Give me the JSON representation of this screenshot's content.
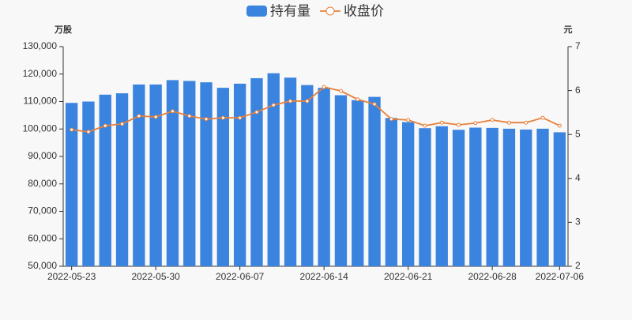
{
  "chart_data": {
    "type": "bar-line",
    "categories": [
      "2022-05-23",
      null,
      null,
      null,
      null,
      "2022-05-30",
      null,
      null,
      null,
      null,
      "2022-06-07",
      null,
      null,
      null,
      null,
      "2022-06-14",
      null,
      null,
      null,
      null,
      "2022-06-21",
      null,
      null,
      null,
      null,
      "2022-06-28",
      null,
      null,
      null,
      "2022-07-06"
    ],
    "y_label": "万股",
    "y2_label": "元",
    "series": [
      {
        "name": "持有量",
        "color": "#3a84e0",
        "kind": "bar",
        "values": [
          109500,
          110000,
          112500,
          113000,
          116200,
          116200,
          117800,
          117500,
          117000,
          115000,
          116500,
          118500,
          120300,
          118700,
          116000,
          115000,
          112300,
          110500,
          111700,
          104000,
          102500,
          100300,
          101000,
          99700,
          100500,
          100400,
          100100,
          99800,
          100100,
          98800
        ]
      },
      {
        "name": "收盘价",
        "color": "#e8803a",
        "kind": "line",
        "axis": "y2",
        "values": [
          5.11,
          5.06,
          5.2,
          5.24,
          5.42,
          5.4,
          5.53,
          5.42,
          5.35,
          5.38,
          5.38,
          5.51,
          5.67,
          5.76,
          5.76,
          6.08,
          5.99,
          5.8,
          5.69,
          5.35,
          5.33,
          5.2,
          5.27,
          5.22,
          5.26,
          5.33,
          5.27,
          5.27,
          5.38,
          5.2
        ]
      }
    ],
    "ylim": [
      50000,
      130000
    ],
    "yticks": [
      {
        "value": 50000,
        "label": "50,000"
      },
      {
        "value": 60000,
        "label": "60,000"
      },
      {
        "value": 70000,
        "label": "70,000"
      },
      {
        "value": 80000,
        "label": "80,000"
      },
      {
        "value": 90000,
        "label": "90,000"
      },
      {
        "value": 100000,
        "label": "100,000"
      },
      {
        "value": 110000,
        "label": "110,000"
      },
      {
        "value": 120000,
        "label": "120,000"
      },
      {
        "value": 130000,
        "label": "130,000"
      }
    ],
    "y2lim": [
      2,
      7
    ],
    "y2ticks": [
      2,
      3,
      4,
      5,
      6,
      7
    ],
    "legend": "top"
  }
}
